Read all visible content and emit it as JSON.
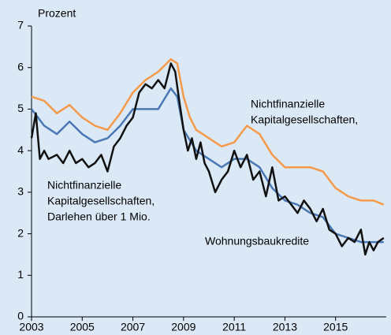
{
  "chart_data": {
    "type": "line",
    "y_label": "Prozent",
    "xlim": [
      2003,
      2017
    ],
    "xticks": [
      2003,
      2005,
      2007,
      2009,
      2011,
      2013,
      2015
    ],
    "ylim": [
      0,
      7
    ],
    "yticks": [
      0,
      1,
      2,
      3,
      4,
      5,
      6,
      7
    ],
    "series": [
      {
        "color": "#f59a4a",
        "x": [
          2003,
          2003.5,
          2004,
          2004.5,
          2005,
          2005.5,
          2006,
          2006.5,
          2007,
          2007.5,
          2008,
          2008.5,
          2008.75,
          2009,
          2009.25,
          2009.5,
          2010,
          2010.5,
          2011,
          2011.5,
          2012,
          2012.5,
          2013,
          2013.5,
          2014,
          2014.5,
          2015,
          2015.5,
          2016,
          2016.5,
          2016.9
        ],
        "values": [
          5.3,
          5.2,
          4.9,
          5.1,
          4.8,
          4.6,
          4.5,
          4.9,
          5.4,
          5.7,
          5.9,
          6.2,
          6.1,
          5.3,
          4.8,
          4.5,
          4.3,
          4.1,
          4.2,
          4.6,
          4.4,
          3.9,
          3.6,
          3.6,
          3.6,
          3.5,
          3.1,
          2.9,
          2.8,
          2.8,
          2.7
        ]
      },
      {
        "color": "#4a78b4",
        "x": [
          2003,
          2003.5,
          2004,
          2004.5,
          2005,
          2005.5,
          2006,
          2006.5,
          2007,
          2007.5,
          2008,
          2008.5,
          2008.75,
          2009,
          2009.5,
          2010,
          2010.5,
          2011,
          2011.5,
          2012,
          2012.5,
          2013,
          2013.5,
          2014,
          2014.5,
          2015,
          2015.5,
          2016,
          2016.5,
          2016.9
        ],
        "values": [
          5.0,
          4.6,
          4.4,
          4.7,
          4.4,
          4.2,
          4.3,
          4.6,
          5.0,
          5.0,
          5.0,
          5.5,
          5.3,
          4.5,
          4.0,
          3.8,
          3.6,
          3.8,
          3.8,
          3.6,
          3.1,
          2.8,
          2.7,
          2.5,
          2.4,
          2.0,
          1.9,
          1.8,
          1.8,
          1.8
        ]
      },
      {
        "color": "#111111",
        "x": [
          2003,
          2003.17,
          2003.33,
          2003.5,
          2003.67,
          2004,
          2004.25,
          2004.5,
          2004.75,
          2005,
          2005.25,
          2005.5,
          2005.75,
          2006,
          2006.25,
          2006.5,
          2006.75,
          2007,
          2007.25,
          2007.5,
          2007.75,
          2008,
          2008.25,
          2008.5,
          2008.67,
          2008.83,
          2009,
          2009.17,
          2009.33,
          2009.5,
          2009.67,
          2009.83,
          2010,
          2010.25,
          2010.5,
          2010.75,
          2011,
          2011.25,
          2011.5,
          2011.75,
          2012,
          2012.25,
          2012.5,
          2012.75,
          2013,
          2013.25,
          2013.5,
          2013.75,
          2014,
          2014.25,
          2014.5,
          2014.75,
          2015,
          2015.25,
          2015.5,
          2015.75,
          2016,
          2016.17,
          2016.33,
          2016.5,
          2016.67,
          2016.9
        ],
        "values": [
          4.3,
          4.9,
          3.8,
          4.0,
          3.8,
          3.9,
          3.7,
          4.0,
          3.7,
          3.8,
          3.6,
          3.7,
          3.9,
          3.5,
          4.1,
          4.3,
          4.6,
          4.8,
          5.4,
          5.6,
          5.5,
          5.7,
          5.5,
          6.1,
          5.9,
          5.2,
          4.5,
          4.0,
          4.3,
          3.8,
          4.2,
          3.7,
          3.5,
          3.0,
          3.3,
          3.5,
          4.0,
          3.6,
          3.9,
          3.3,
          3.5,
          2.9,
          3.6,
          2.8,
          2.9,
          2.7,
          2.5,
          2.8,
          2.6,
          2.3,
          2.6,
          2.1,
          2.0,
          1.7,
          1.9,
          1.8,
          2.1,
          1.5,
          1.8,
          1.6,
          1.8,
          1.9
        ]
      }
    ],
    "annotations": [
      {
        "lines": [
          "Nichtfinanzielle",
          "Kapitalgesellschaften,"
        ]
      },
      {
        "lines": [
          "Nichtfinanzielle",
          "Kapitalgesellschaften,",
          "Darlehen über 1 Mio."
        ]
      },
      {
        "lines": [
          "Wohnungsbaukredite"
        ]
      }
    ]
  }
}
